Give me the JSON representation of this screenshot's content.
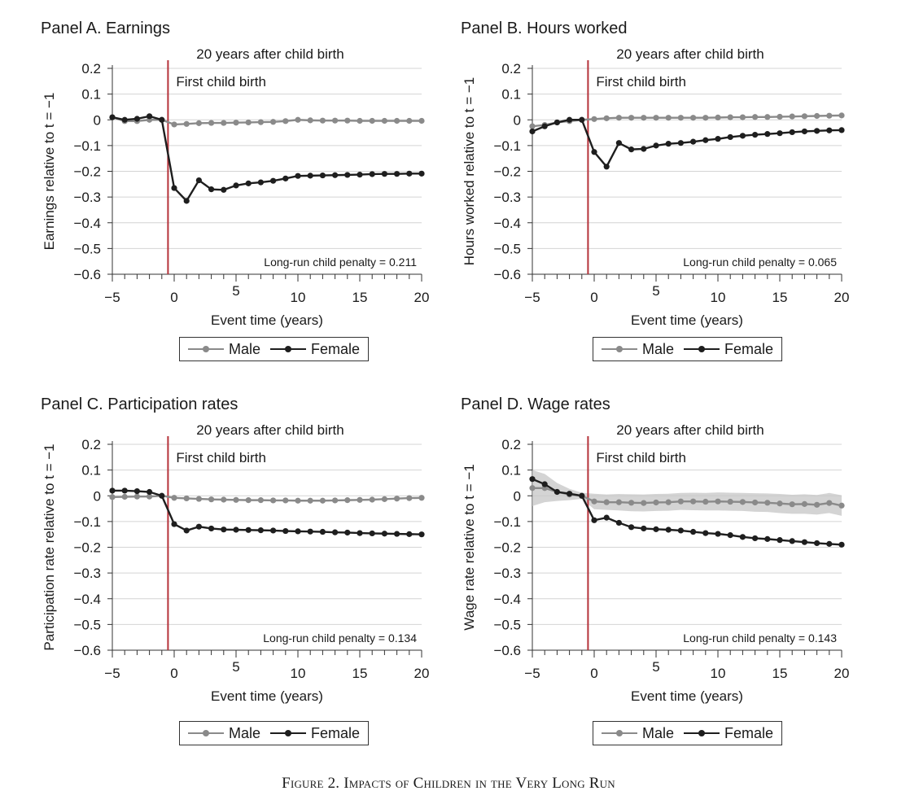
{
  "figure": {
    "caption": "Figure 2. Impacts of Children in the Very Long Run"
  },
  "colors": {
    "male": "#8a8a8a",
    "female": "#1e1e1e",
    "event_line": "#b5323a",
    "grid": "#d4d4d4",
    "band": "#c6c6c6"
  },
  "chart_data": [
    {
      "type": "line",
      "panel_title": "Panel A. Earnings",
      "title": "20 years after child birth",
      "xlabel": "Event time (years)",
      "ylabel": "Earnings relative to t = −1",
      "event_label": "First child birth",
      "penalty_label": "Long-run child penalty = 0.211",
      "xlim": [
        -5,
        20
      ],
      "ylim": [
        -0.6,
        0.2
      ],
      "x_ticks": [
        "−5",
        "0",
        "5",
        "10",
        "15",
        "20"
      ],
      "y_ticks": [
        "0.2",
        "0.1",
        "0",
        "−0.1",
        "−0.2",
        "−0.3",
        "−0.4",
        "−0.5",
        "−0.6"
      ],
      "legend": [
        "Male",
        "Female"
      ],
      "x": [
        -5,
        -4,
        -3,
        -2,
        -1,
        0,
        1,
        2,
        3,
        4,
        5,
        6,
        7,
        8,
        9,
        10,
        11,
        12,
        13,
        14,
        15,
        16,
        17,
        18,
        19,
        20
      ],
      "series": [
        {
          "name": "Male",
          "values": [
            0.01,
            -0.005,
            -0.005,
            0.0,
            0.0,
            -0.018,
            -0.016,
            -0.013,
            -0.012,
            -0.012,
            -0.011,
            -0.01,
            -0.009,
            -0.008,
            -0.005,
            0.0,
            -0.002,
            -0.003,
            -0.003,
            -0.003,
            -0.004,
            -0.004,
            -0.004,
            -0.004,
            -0.004,
            -0.004
          ]
        },
        {
          "name": "Female",
          "values": [
            0.01,
            0.0,
            0.004,
            0.014,
            0.0,
            -0.265,
            -0.315,
            -0.235,
            -0.27,
            -0.272,
            -0.255,
            -0.247,
            -0.243,
            -0.237,
            -0.228,
            -0.218,
            -0.217,
            -0.216,
            -0.215,
            -0.214,
            -0.213,
            -0.211,
            -0.21,
            -0.21,
            -0.209,
            -0.209
          ]
        }
      ]
    },
    {
      "type": "line",
      "panel_title": "Panel B. Hours worked",
      "title": "20 years after child birth",
      "xlabel": "Event time (years)",
      "ylabel": "Hours worked relative to t = −1",
      "event_label": "First child birth",
      "penalty_label": "Long-run child penalty = 0.065",
      "xlim": [
        -5,
        20
      ],
      "ylim": [
        -0.6,
        0.2
      ],
      "x_ticks": [
        "−5",
        "0",
        "5",
        "10",
        "15",
        "20"
      ],
      "y_ticks": [
        "0.2",
        "0.1",
        "0",
        "−0.1",
        "−0.2",
        "−0.3",
        "−0.4",
        "−0.5",
        "−0.6"
      ],
      "legend": [
        "Male",
        "Female"
      ],
      "x": [
        -5,
        -4,
        -3,
        -2,
        -1,
        0,
        1,
        2,
        3,
        4,
        5,
        6,
        7,
        8,
        9,
        10,
        11,
        12,
        13,
        14,
        15,
        16,
        17,
        18,
        19,
        20
      ],
      "series": [
        {
          "name": "Male",
          "values": [
            -0.025,
            -0.02,
            -0.01,
            -0.005,
            0.0,
            0.003,
            0.006,
            0.008,
            0.008,
            0.008,
            0.008,
            0.008,
            0.008,
            0.008,
            0.008,
            0.009,
            0.01,
            0.01,
            0.011,
            0.011,
            0.012,
            0.013,
            0.014,
            0.015,
            0.016,
            0.017
          ]
        },
        {
          "name": "Female",
          "values": [
            -0.045,
            -0.025,
            -0.01,
            0.0,
            0.0,
            -0.125,
            -0.182,
            -0.09,
            -0.115,
            -0.113,
            -0.1,
            -0.093,
            -0.09,
            -0.085,
            -0.079,
            -0.074,
            -0.067,
            -0.062,
            -0.058,
            -0.055,
            -0.052,
            -0.048,
            -0.045,
            -0.043,
            -0.041,
            -0.04
          ]
        }
      ]
    },
    {
      "type": "line",
      "panel_title": "Panel C. Participation rates",
      "title": "20 years after child birth",
      "xlabel": "Event time (years)",
      "ylabel": "Participation rate relative to t = −1",
      "event_label": "First child birth",
      "penalty_label": "Long-run child penalty = 0.134",
      "xlim": [
        -5,
        20
      ],
      "ylim": [
        -0.6,
        0.2
      ],
      "x_ticks": [
        "−5",
        "0",
        "5",
        "10",
        "15",
        "20"
      ],
      "y_ticks": [
        "0.2",
        "0.1",
        "0",
        "−0.1",
        "−0.2",
        "−0.3",
        "−0.4",
        "−0.5",
        "−0.6"
      ],
      "legend": [
        "Male",
        "Female"
      ],
      "x": [
        -5,
        -4,
        -3,
        -2,
        -1,
        0,
        1,
        2,
        3,
        4,
        5,
        6,
        7,
        8,
        9,
        10,
        11,
        12,
        13,
        14,
        15,
        16,
        17,
        18,
        19,
        20
      ],
      "series": [
        {
          "name": "Male",
          "values": [
            -0.005,
            -0.004,
            -0.003,
            -0.003,
            0.0,
            -0.008,
            -0.01,
            -0.012,
            -0.014,
            -0.015,
            -0.016,
            -0.017,
            -0.017,
            -0.018,
            -0.018,
            -0.019,
            -0.019,
            -0.019,
            -0.018,
            -0.017,
            -0.016,
            -0.015,
            -0.013,
            -0.011,
            -0.009,
            -0.008
          ]
        },
        {
          "name": "Female",
          "values": [
            0.02,
            0.02,
            0.018,
            0.015,
            0.0,
            -0.11,
            -0.135,
            -0.12,
            -0.127,
            -0.131,
            -0.132,
            -0.133,
            -0.134,
            -0.135,
            -0.137,
            -0.138,
            -0.139,
            -0.14,
            -0.142,
            -0.143,
            -0.145,
            -0.146,
            -0.147,
            -0.148,
            -0.149,
            -0.15
          ]
        }
      ]
    },
    {
      "type": "line",
      "panel_title": "Panel D. Wage rates",
      "title": "20 years after child birth",
      "xlabel": "Event time (years)",
      "ylabel": "Wage rate relative to t = −1",
      "event_label": "First child birth",
      "penalty_label": "Long-run child penalty = 0.143",
      "xlim": [
        -5,
        20
      ],
      "ylim": [
        -0.6,
        0.2
      ],
      "x_ticks": [
        "−5",
        "0",
        "5",
        "10",
        "15",
        "20"
      ],
      "y_ticks": [
        "0.2",
        "0.1",
        "0",
        "−0.1",
        "−0.2",
        "−0.3",
        "−0.4",
        "−0.5",
        "−0.6"
      ],
      "legend": [
        "Male",
        "Female"
      ],
      "has_confidence_band": true,
      "x": [
        -5,
        -4,
        -3,
        -2,
        -1,
        0,
        1,
        2,
        3,
        4,
        5,
        6,
        7,
        8,
        9,
        10,
        11,
        12,
        13,
        14,
        15,
        16,
        17,
        18,
        19,
        20
      ],
      "series": [
        {
          "name": "Male",
          "values": [
            0.03,
            0.03,
            0.015,
            0.005,
            0.0,
            -0.022,
            -0.025,
            -0.025,
            -0.027,
            -0.028,
            -0.026,
            -0.025,
            -0.022,
            -0.022,
            -0.023,
            -0.022,
            -0.023,
            -0.024,
            -0.026,
            -0.027,
            -0.03,
            -0.033,
            -0.032,
            -0.035,
            -0.028,
            -0.038
          ],
          "band": [
            0.07,
            0.055,
            0.035,
            0.022,
            0.012,
            0.03,
            0.03,
            0.032,
            0.033,
            0.033,
            0.033,
            0.033,
            0.033,
            0.034,
            0.034,
            0.035,
            0.035,
            0.035,
            0.036,
            0.036,
            0.037,
            0.037,
            0.038,
            0.038,
            0.039,
            0.04
          ]
        },
        {
          "name": "Female",
          "values": [
            0.065,
            0.045,
            0.015,
            0.008,
            0.0,
            -0.095,
            -0.085,
            -0.105,
            -0.122,
            -0.127,
            -0.13,
            -0.132,
            -0.135,
            -0.14,
            -0.145,
            -0.148,
            -0.153,
            -0.16,
            -0.165,
            -0.168,
            -0.172,
            -0.176,
            -0.18,
            -0.184,
            -0.187,
            -0.19
          ]
        }
      ]
    }
  ]
}
